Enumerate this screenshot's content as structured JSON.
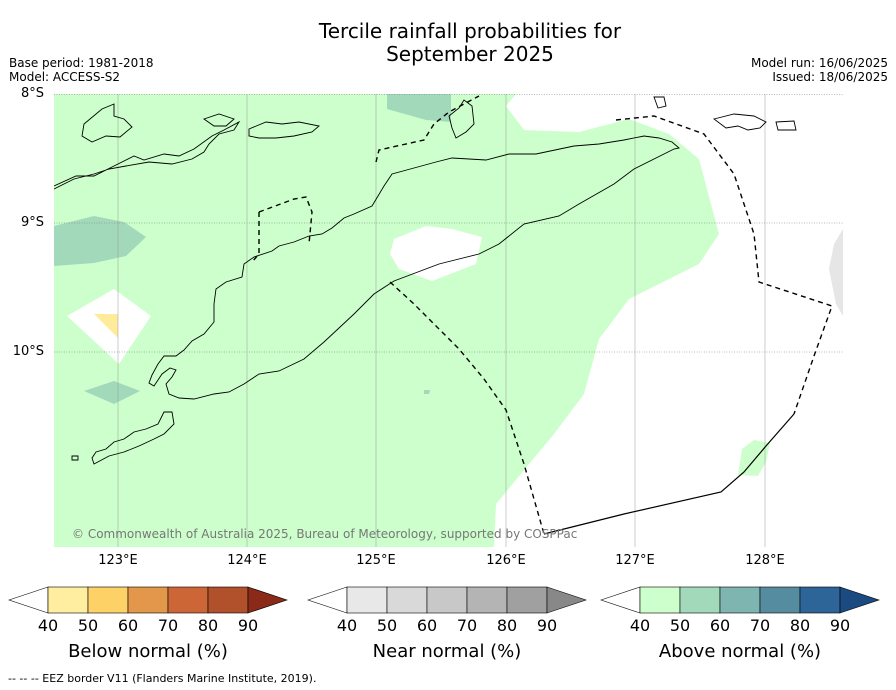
{
  "title": {
    "line1": "Tercile rainfall probabilities for",
    "line2": "September 2025"
  },
  "meta": {
    "base_period": "Base period: 1981-2018",
    "model": "Model: ACCESS-S2",
    "model_run": "Model run: 16/06/2025",
    "issued": "Issued: 18/06/2025"
  },
  "map": {
    "lat_labels": [
      "8°S",
      "9°S",
      "10°S"
    ],
    "lon_labels": [
      "123°E",
      "124°E",
      "125°E",
      "126°E",
      "127°E",
      "128°E"
    ],
    "copyright": "© Commonwealth of Australia 2025, Bureau of Meteorology, supported by COSPPac",
    "colors": {
      "above_40_50": "#ccffcc",
      "above_50_60": "#a3d9bb",
      "below_40_50": "#ffeb9c",
      "land_outline": "#000000",
      "eez_border": "#000000",
      "grid": "#777777",
      "no_data": "#e6e6e6"
    }
  },
  "colorbars": {
    "ticks": [
      "40",
      "50",
      "60",
      "70",
      "80",
      "90"
    ],
    "below": {
      "label": "Below normal (%)",
      "colors": [
        "#ffeda0",
        "#fed166",
        "#e2974a",
        "#cd6636",
        "#b1512c",
        "#8c2a1a"
      ]
    },
    "near": {
      "label": "Near normal (%)",
      "colors": [
        "#e8e8e8",
        "#d9d9d9",
        "#c8c8c8",
        "#b4b4b4",
        "#a0a0a0",
        "#888888"
      ]
    },
    "above": {
      "label": "Above normal (%)",
      "colors": [
        "#ccffcc",
        "#a3d9bb",
        "#7fb5b0",
        "#568c9f",
        "#2e6598",
        "#1b4a80"
      ]
    }
  },
  "footer": {
    "eez_legend": "--  --  -- EEZ border V11 (Flanders Marine Institute, 2019)."
  }
}
